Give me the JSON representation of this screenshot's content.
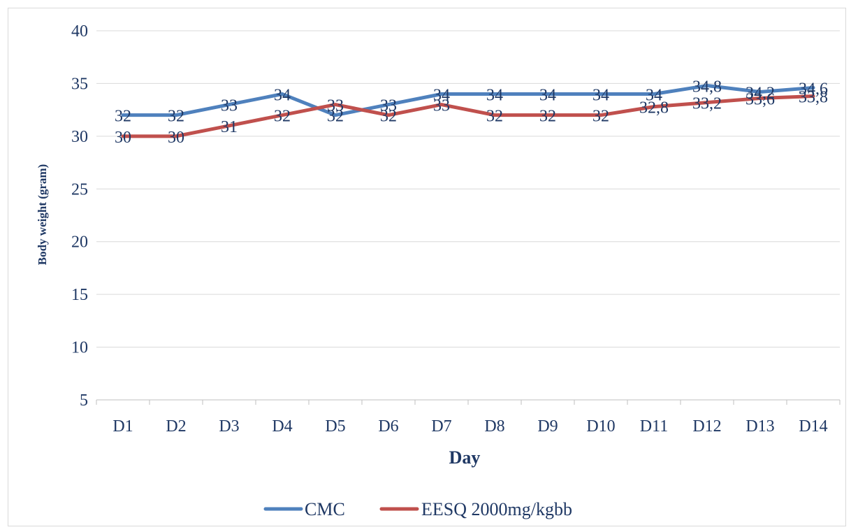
{
  "chart_data": {
    "type": "line",
    "title": "",
    "xlabel": "Day",
    "ylabel": "Body weight (gram)",
    "categories": [
      "D1",
      "D2",
      "D3",
      "D4",
      "D5",
      "D6",
      "D7",
      "D8",
      "D9",
      "D10",
      "D11",
      "D12",
      "D13",
      "D14"
    ],
    "ylim": [
      5,
      40
    ],
    "yticks": [
      "5",
      "10",
      "15",
      "20",
      "25",
      "30",
      "35",
      "40"
    ],
    "grid": true,
    "legend": "bottom",
    "series": [
      {
        "name": "CMC",
        "color": "#4f81bd",
        "values": [
          32,
          32,
          33,
          34,
          32,
          33,
          34,
          34,
          34,
          34,
          34,
          34.8,
          34.2,
          34.6
        ],
        "labels": [
          "32",
          "32",
          "33",
          "34",
          "32",
          "33",
          "34",
          "34",
          "34",
          "34",
          "34",
          "34,8",
          "34,2",
          "34,6"
        ]
      },
      {
        "name": "EESQ 2000mg/kgbb",
        "color": "#c0504d",
        "values": [
          30,
          30,
          31,
          32,
          33,
          32,
          33,
          32,
          32,
          32,
          32.8,
          33.2,
          33.6,
          33.8
        ],
        "labels": [
          "30",
          "30",
          "31",
          "32",
          "33",
          "32",
          "33",
          "32",
          "32",
          "32",
          "32,8",
          "33,2",
          "33,6",
          "33,8"
        ]
      }
    ]
  }
}
